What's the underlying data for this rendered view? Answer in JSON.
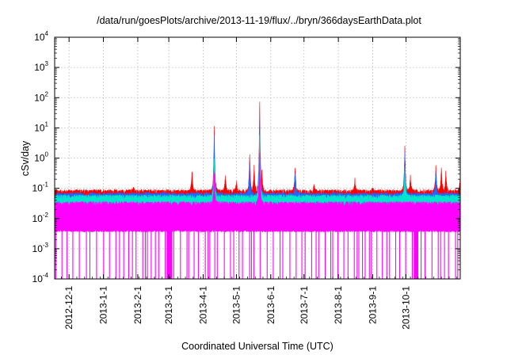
{
  "chart_data": {
    "type": "line",
    "title": "/data/run/goesPlots/archive/2013-11-19/flux/../bryn/366daysEarthData.plot",
    "xlabel": "Coordinated Universal Time (UTC)",
    "ylabel": "cSv/day",
    "yscale": "log",
    "ylim": [
      0.0001,
      10000
    ],
    "xlim": [
      "2012-11-18",
      "2013-11-19"
    ],
    "grid": true,
    "x_ticks": [
      {
        "date": "2012-12-01",
        "label": "2012-12-1"
      },
      {
        "date": "2013-01-01",
        "label": "2013-1-1"
      },
      {
        "date": "2013-02-01",
        "label": "2013-2-1"
      },
      {
        "date": "2013-03-01",
        "label": "2013-3-1"
      },
      {
        "date": "2013-04-01",
        "label": "2013-4-1"
      },
      {
        "date": "2013-05-01",
        "label": "2013-5-1"
      },
      {
        "date": "2013-06-01",
        "label": "2013-6-1"
      },
      {
        "date": "2013-07-01",
        "label": "2013-7-1"
      },
      {
        "date": "2013-08-01",
        "label": "2013-8-1"
      },
      {
        "date": "2013-09-01",
        "label": "2013-9-1"
      },
      {
        "date": "2013-10-01",
        "label": "2013-10-1"
      }
    ],
    "y_ticks": [
      {
        "value": 0.0001,
        "base": "10",
        "exp": "-4"
      },
      {
        "value": 0.001,
        "base": "10",
        "exp": "-3"
      },
      {
        "value": 0.01,
        "base": "10",
        "exp": "-2"
      },
      {
        "value": 0.1,
        "base": "10",
        "exp": "-1"
      },
      {
        "value": 1,
        "base": "10",
        "exp": "0"
      },
      {
        "value": 10,
        "base": "10",
        "exp": "1"
      },
      {
        "value": 100,
        "base": "10",
        "exp": "2"
      },
      {
        "value": 1000,
        "base": "10",
        "exp": "3"
      },
      {
        "value": 10000,
        "base": "10",
        "exp": "4"
      }
    ],
    "series": [
      {
        "color": "#ff0000",
        "baseline": 0.075,
        "points": [
          [
            "2012-11-18",
            0.075
          ],
          [
            "2012-12-10",
            0.085
          ],
          [
            "2013-01-01",
            0.08
          ],
          [
            "2013-01-28",
            0.11
          ],
          [
            "2013-03-22",
            0.45
          ],
          [
            "2013-04-11",
            10
          ],
          [
            "2013-04-11",
            0.3
          ],
          [
            "2013-04-21",
            0.25
          ],
          [
            "2013-05-01",
            0.15
          ],
          [
            "2013-05-13",
            1.6
          ],
          [
            "2013-05-17",
            0.6
          ],
          [
            "2013-05-22",
            100
          ],
          [
            "2013-05-24",
            0.4
          ],
          [
            "2013-06-23",
            0.5
          ],
          [
            "2013-07-10",
            0.12
          ],
          [
            "2013-08-16",
            0.2
          ],
          [
            "2013-09-01",
            0.1
          ],
          [
            "2013-09-30",
            2.8
          ],
          [
            "2013-10-05",
            0.25
          ],
          [
            "2013-10-28",
            0.6
          ],
          [
            "2013-11-02",
            0.5
          ],
          [
            "2013-11-06",
            0.35
          ],
          [
            "2013-11-19",
            0.28
          ]
        ]
      },
      {
        "color": "#2266ff",
        "baseline": 0.06,
        "points": [
          [
            "2013-04-11",
            5
          ],
          [
            "2013-05-13",
            0.9
          ],
          [
            "2013-05-22",
            40
          ],
          [
            "2013-06-23",
            0.3
          ],
          [
            "2013-09-30",
            1.8
          ],
          [
            "2013-10-28",
            0.4
          ]
        ]
      },
      {
        "color": "#00e5cc",
        "baseline": 0.05,
        "points": [
          [
            "2013-04-11",
            1.0
          ],
          [
            "2013-05-22",
            8
          ],
          [
            "2013-09-30",
            0.6
          ]
        ]
      },
      {
        "color": "#ff00ff",
        "baseline": 0.03,
        "floor": 0.004,
        "points": [
          [
            "2013-05-22",
            2
          ],
          [
            "2013-04-11",
            0.4
          ]
        ]
      }
    ]
  }
}
